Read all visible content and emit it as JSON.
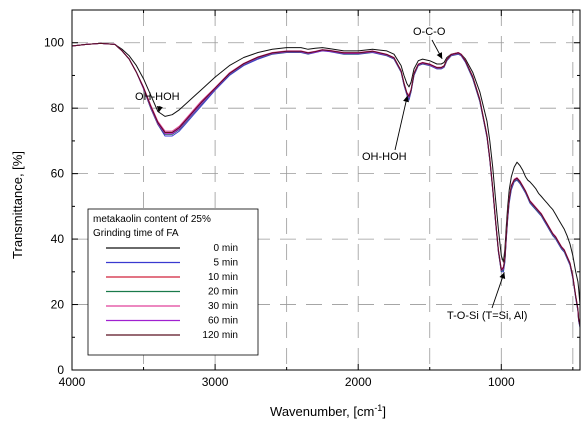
{
  "chart_data": {
    "type": "line",
    "title": "",
    "xlabel": "Wavenumber, [cm",
    "xlabel_sup": "-1",
    "xlabel_close": "]",
    "ylabel": "Transmittance, [%]",
    "xlim": [
      4000,
      450
    ],
    "ylim": [
      0,
      110
    ],
    "x_reversed": true,
    "x_ticks": [
      4000,
      3000,
      2000,
      1000
    ],
    "y_ticks": [
      0,
      20,
      40,
      60,
      80,
      100
    ],
    "grid": true,
    "legend": {
      "placement": "bottom-left",
      "title_lines": [
        "metakaolin content of 25%",
        "Grinding time of FA"
      ]
    },
    "annotations": [
      {
        "text": "OH-HOH",
        "x": 3400,
        "y": 77.5
      },
      {
        "text": "OH-HOH",
        "x": 1650,
        "y": 85
      },
      {
        "text": "O-C-O",
        "x": 1400,
        "y": 94
      },
      {
        "text": "T-O-Si (T=Si, Al)",
        "x": 970,
        "y": 31
      }
    ],
    "x": [
      4000,
      3900,
      3800,
      3700,
      3650,
      3600,
      3550,
      3500,
      3450,
      3400,
      3350,
      3300,
      3250,
      3200,
      3150,
      3100,
      3000,
      2900,
      2800,
      2700,
      2600,
      2500,
      2400,
      2350,
      2300,
      2250,
      2200,
      2100,
      2000,
      1900,
      1800,
      1750,
      1700,
      1680,
      1660,
      1645,
      1630,
      1610,
      1580,
      1550,
      1500,
      1450,
      1420,
      1400,
      1380,
      1350,
      1300,
      1280,
      1250,
      1200,
      1150,
      1100,
      1080,
      1060,
      1040,
      1020,
      1000,
      985,
      975,
      965,
      955,
      945,
      930,
      910,
      890,
      870,
      850,
      830,
      815,
      800,
      780,
      760,
      740,
      720,
      700,
      680,
      660,
      640,
      620,
      600,
      580,
      560,
      540,
      520,
      500,
      480,
      465,
      460,
      450
    ],
    "series": [
      {
        "name": "0 min",
        "color": "#111111",
        "y": [
          99,
          99.5,
          99.8,
          99.5,
          98,
          96,
          93,
          89,
          84,
          79,
          77.5,
          78,
          79.5,
          81.5,
          83.5,
          85.5,
          89.5,
          93,
          95.5,
          97,
          98,
          98.5,
          98.5,
          98,
          98.3,
          98.5,
          98.2,
          97.5,
          97.5,
          98,
          97.5,
          96.5,
          93,
          90,
          87.5,
          86.5,
          88,
          92,
          94.5,
          95,
          94.5,
          93.5,
          93.5,
          94,
          95.5,
          96.5,
          97,
          96.5,
          95,
          91,
          85,
          76,
          70,
          62,
          52,
          43,
          35,
          33,
          37,
          44,
          50,
          55,
          59,
          62,
          63.5,
          62.5,
          61,
          59,
          58,
          57.5,
          56.5,
          55.5,
          54,
          53,
          52,
          51,
          50,
          49,
          47.5,
          46,
          44.5,
          43,
          41,
          38.5,
          35,
          30,
          27,
          25,
          20
        ]
      },
      {
        "name": "5 min",
        "color": "#3a3ad0",
        "y": [
          99,
          99.5,
          99.8,
          99.5,
          97.5,
          95,
          91,
          86,
          80,
          75,
          71.5,
          71.5,
          73,
          75.5,
          78,
          80.5,
          85.5,
          90,
          93,
          95,
          96.5,
          97,
          97,
          96.5,
          97,
          97.5,
          97.3,
          96.5,
          96.5,
          97,
          96,
          95,
          91,
          87,
          84,
          82.5,
          85,
          90,
          93,
          93.5,
          93,
          92,
          92,
          92.5,
          94.5,
          96,
          96.5,
          96,
          94,
          89,
          82,
          71,
          64,
          55,
          45,
          36,
          30,
          30,
          33,
          40,
          46,
          51,
          55,
          57.5,
          58,
          57,
          55.5,
          54,
          52.5,
          51,
          50,
          49,
          48,
          47,
          45.5,
          44,
          42.5,
          41,
          40,
          38.5,
          37,
          36,
          34,
          32,
          28,
          22,
          18,
          15,
          13
        ]
      },
      {
        "name": "10 min",
        "color": "#d0203a",
        "y": [
          99,
          99.5,
          99.8,
          99.5,
          97.5,
          95,
          91,
          86,
          80.5,
          75.5,
          72.5,
          72.5,
          74,
          76.5,
          79,
          81.5,
          86,
          90.5,
          93.5,
          95.5,
          96.8,
          97.3,
          97.3,
          96.8,
          97.2,
          97.7,
          97.5,
          96.8,
          96.8,
          97.3,
          96.3,
          95.3,
          91.3,
          87.5,
          84.5,
          83.5,
          85.5,
          90.5,
          93.3,
          93.8,
          93.3,
          92.3,
          92.3,
          92.8,
          94.8,
          96.3,
          96.8,
          96.3,
          94.3,
          89.5,
          82.5,
          71.5,
          64.5,
          55.5,
          45.5,
          36.5,
          30.5,
          31,
          34,
          41,
          47,
          52,
          56,
          58,
          58.5,
          57.5,
          56,
          54.5,
          53,
          51.5,
          50.5,
          49.5,
          48.5,
          47.5,
          46,
          44.5,
          43,
          41.5,
          40.5,
          39,
          37.5,
          36.5,
          34.5,
          32.5,
          28.5,
          22.5,
          18.5,
          15.5,
          13.5
        ]
      },
      {
        "name": "20 min",
        "color": "#1a7a4a",
        "y": [
          99,
          99.5,
          99.8,
          99.5,
          97.5,
          95,
          91,
          86,
          80,
          75,
          72,
          72,
          73.5,
          76,
          78.5,
          81,
          85.8,
          90.3,
          93.3,
          95.3,
          96.6,
          97.1,
          97.1,
          96.6,
          97.1,
          97.6,
          97.4,
          96.6,
          96.6,
          97.1,
          96.1,
          95.1,
          91.1,
          87.2,
          84.2,
          83,
          85.2,
          90.2,
          93.1,
          93.6,
          93.1,
          92.1,
          92.1,
          92.6,
          94.6,
          96.1,
          96.6,
          96.1,
          94.1,
          89.2,
          82.2,
          71.2,
          64.2,
          55.2,
          45.2,
          36.2,
          30.2,
          30.5,
          33.5,
          40.5,
          46.5,
          51.5,
          55.5,
          57.7,
          58.2,
          57.2,
          55.7,
          54.2,
          52.7,
          51.2,
          50.2,
          49.2,
          48.2,
          47.2,
          45.7,
          44.2,
          42.7,
          41.2,
          40.2,
          38.7,
          37.2,
          36.2,
          34.2,
          32.2,
          28.2,
          22.2,
          18.2,
          15.2,
          13.2
        ]
      },
      {
        "name": "30 min",
        "color": "#e0409a",
        "y": [
          99,
          99.5,
          99.8,
          99.5,
          97.5,
          95,
          91,
          86.5,
          81,
          76,
          73,
          73,
          74.5,
          77,
          79.5,
          82,
          86.3,
          90.8,
          93.7,
          95.7,
          97,
          97.5,
          97.5,
          97,
          97.4,
          97.9,
          97.7,
          97,
          97,
          97.5,
          96.5,
          95.5,
          91.5,
          87.8,
          84.8,
          84,
          85.8,
          90.8,
          93.5,
          94,
          93.5,
          92.5,
          92.5,
          93,
          95,
          96.5,
          97,
          96.5,
          94.5,
          89.8,
          82.8,
          71.8,
          64.8,
          55.8,
          45.8,
          36.8,
          31,
          31.5,
          34.5,
          41.5,
          47.5,
          52.5,
          56.5,
          58.3,
          58.8,
          57.8,
          56.3,
          54.8,
          53.3,
          51.8,
          50.8,
          49.8,
          48.8,
          47.8,
          46.3,
          44.8,
          43.3,
          41.8,
          40.8,
          39.3,
          37.8,
          36.8,
          34.8,
          32.8,
          28.8,
          22.8,
          18.8,
          15.8,
          13.8
        ]
      },
      {
        "name": "60 min",
        "color": "#a020d0",
        "y": [
          99,
          99.5,
          99.8,
          99.5,
          97.5,
          95,
          91,
          86,
          80.2,
          75.2,
          72.2,
          72.2,
          73.7,
          76.2,
          78.7,
          81.2,
          85.9,
          90.4,
          93.4,
          95.4,
          96.7,
          97.2,
          97.2,
          96.7,
          97.1,
          97.6,
          97.4,
          96.7,
          96.7,
          97.2,
          96.2,
          95.2,
          91.2,
          87.4,
          84.4,
          83.2,
          85.4,
          90.4,
          93.2,
          93.7,
          93.2,
          92.2,
          92.2,
          92.7,
          94.7,
          96.2,
          96.7,
          96.2,
          94.2,
          89.4,
          82.4,
          71.4,
          64.4,
          55.4,
          45.4,
          36.4,
          30.4,
          30.8,
          33.8,
          40.8,
          46.8,
          51.8,
          55.8,
          57.9,
          58.4,
          57.4,
          55.9,
          54.4,
          52.9,
          51.4,
          50.4,
          49.4,
          48.4,
          47.4,
          45.9,
          44.4,
          42.9,
          41.4,
          40.4,
          38.9,
          37.4,
          36.4,
          34.4,
          32.4,
          28.4,
          22.4,
          18.4,
          15.4,
          13.4
        ]
      },
      {
        "name": "120 min",
        "color": "#5a1020",
        "y": [
          99,
          99.5,
          99.8,
          99.5,
          97.5,
          95,
          91,
          86.3,
          80.6,
          75.6,
          72.6,
          72.6,
          74.1,
          76.6,
          79.1,
          81.6,
          86.1,
          90.6,
          93.6,
          95.6,
          96.9,
          97.4,
          97.4,
          96.9,
          97.3,
          97.8,
          97.6,
          96.9,
          96.9,
          97.4,
          96.4,
          95.4,
          91.4,
          87.6,
          84.6,
          83.6,
          85.6,
          90.6,
          93.4,
          93.9,
          93.4,
          92.4,
          92.4,
          92.9,
          94.9,
          96.4,
          96.9,
          96.4,
          94.4,
          89.6,
          82.6,
          71.6,
          64.6,
          55.6,
          45.6,
          36.6,
          30.6,
          31.2,
          34.2,
          41.2,
          47.2,
          52.2,
          56.2,
          58.1,
          58.6,
          57.6,
          56.1,
          54.6,
          53.1,
          51.6,
          50.6,
          49.6,
          48.6,
          47.6,
          46.1,
          44.6,
          43.1,
          41.6,
          40.6,
          39.1,
          37.6,
          36.6,
          34.6,
          32.6,
          28.6,
          22.6,
          18.6,
          15.6,
          13.6
        ]
      }
    ]
  }
}
